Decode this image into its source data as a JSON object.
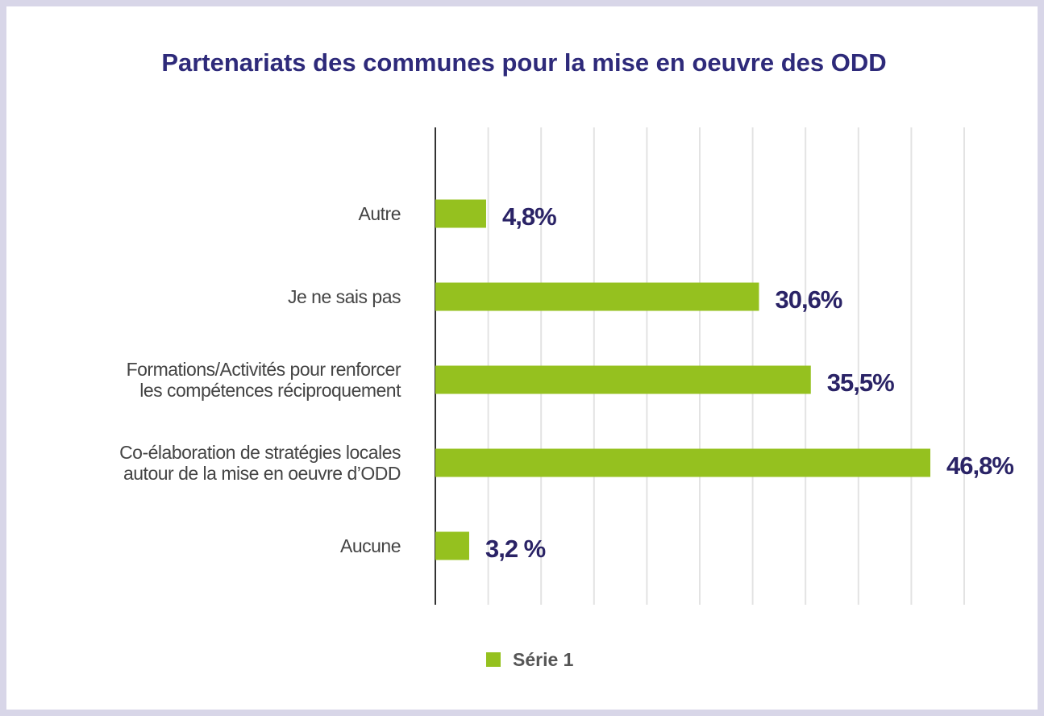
{
  "chart_data": {
    "type": "barh",
    "title": "Partenariats des communes pour la mise en oeuvre des ODD",
    "categories": [
      "Autre",
      "Je ne sais pas",
      "Formations/Activités pour renforcer\nles compétences réciproquement",
      "Co-élaboration de stratégies locales\nautour de la mise en oeuvre d’ODD",
      "Aucune"
    ],
    "series": [
      {
        "name": "Série 1",
        "color": "#95c11f",
        "values": [
          4.8,
          30.6,
          35.5,
          46.8,
          3.2
        ],
        "value_labels": [
          "4,8%",
          "30,6%",
          "35,5%",
          "46,8%",
          "3,2 %"
        ]
      }
    ],
    "xlim": [
      0,
      50
    ],
    "xticks": [
      0,
      5,
      10,
      15,
      20,
      25,
      30,
      35,
      40,
      45,
      50
    ],
    "grid": true,
    "legend": "bottom"
  }
}
